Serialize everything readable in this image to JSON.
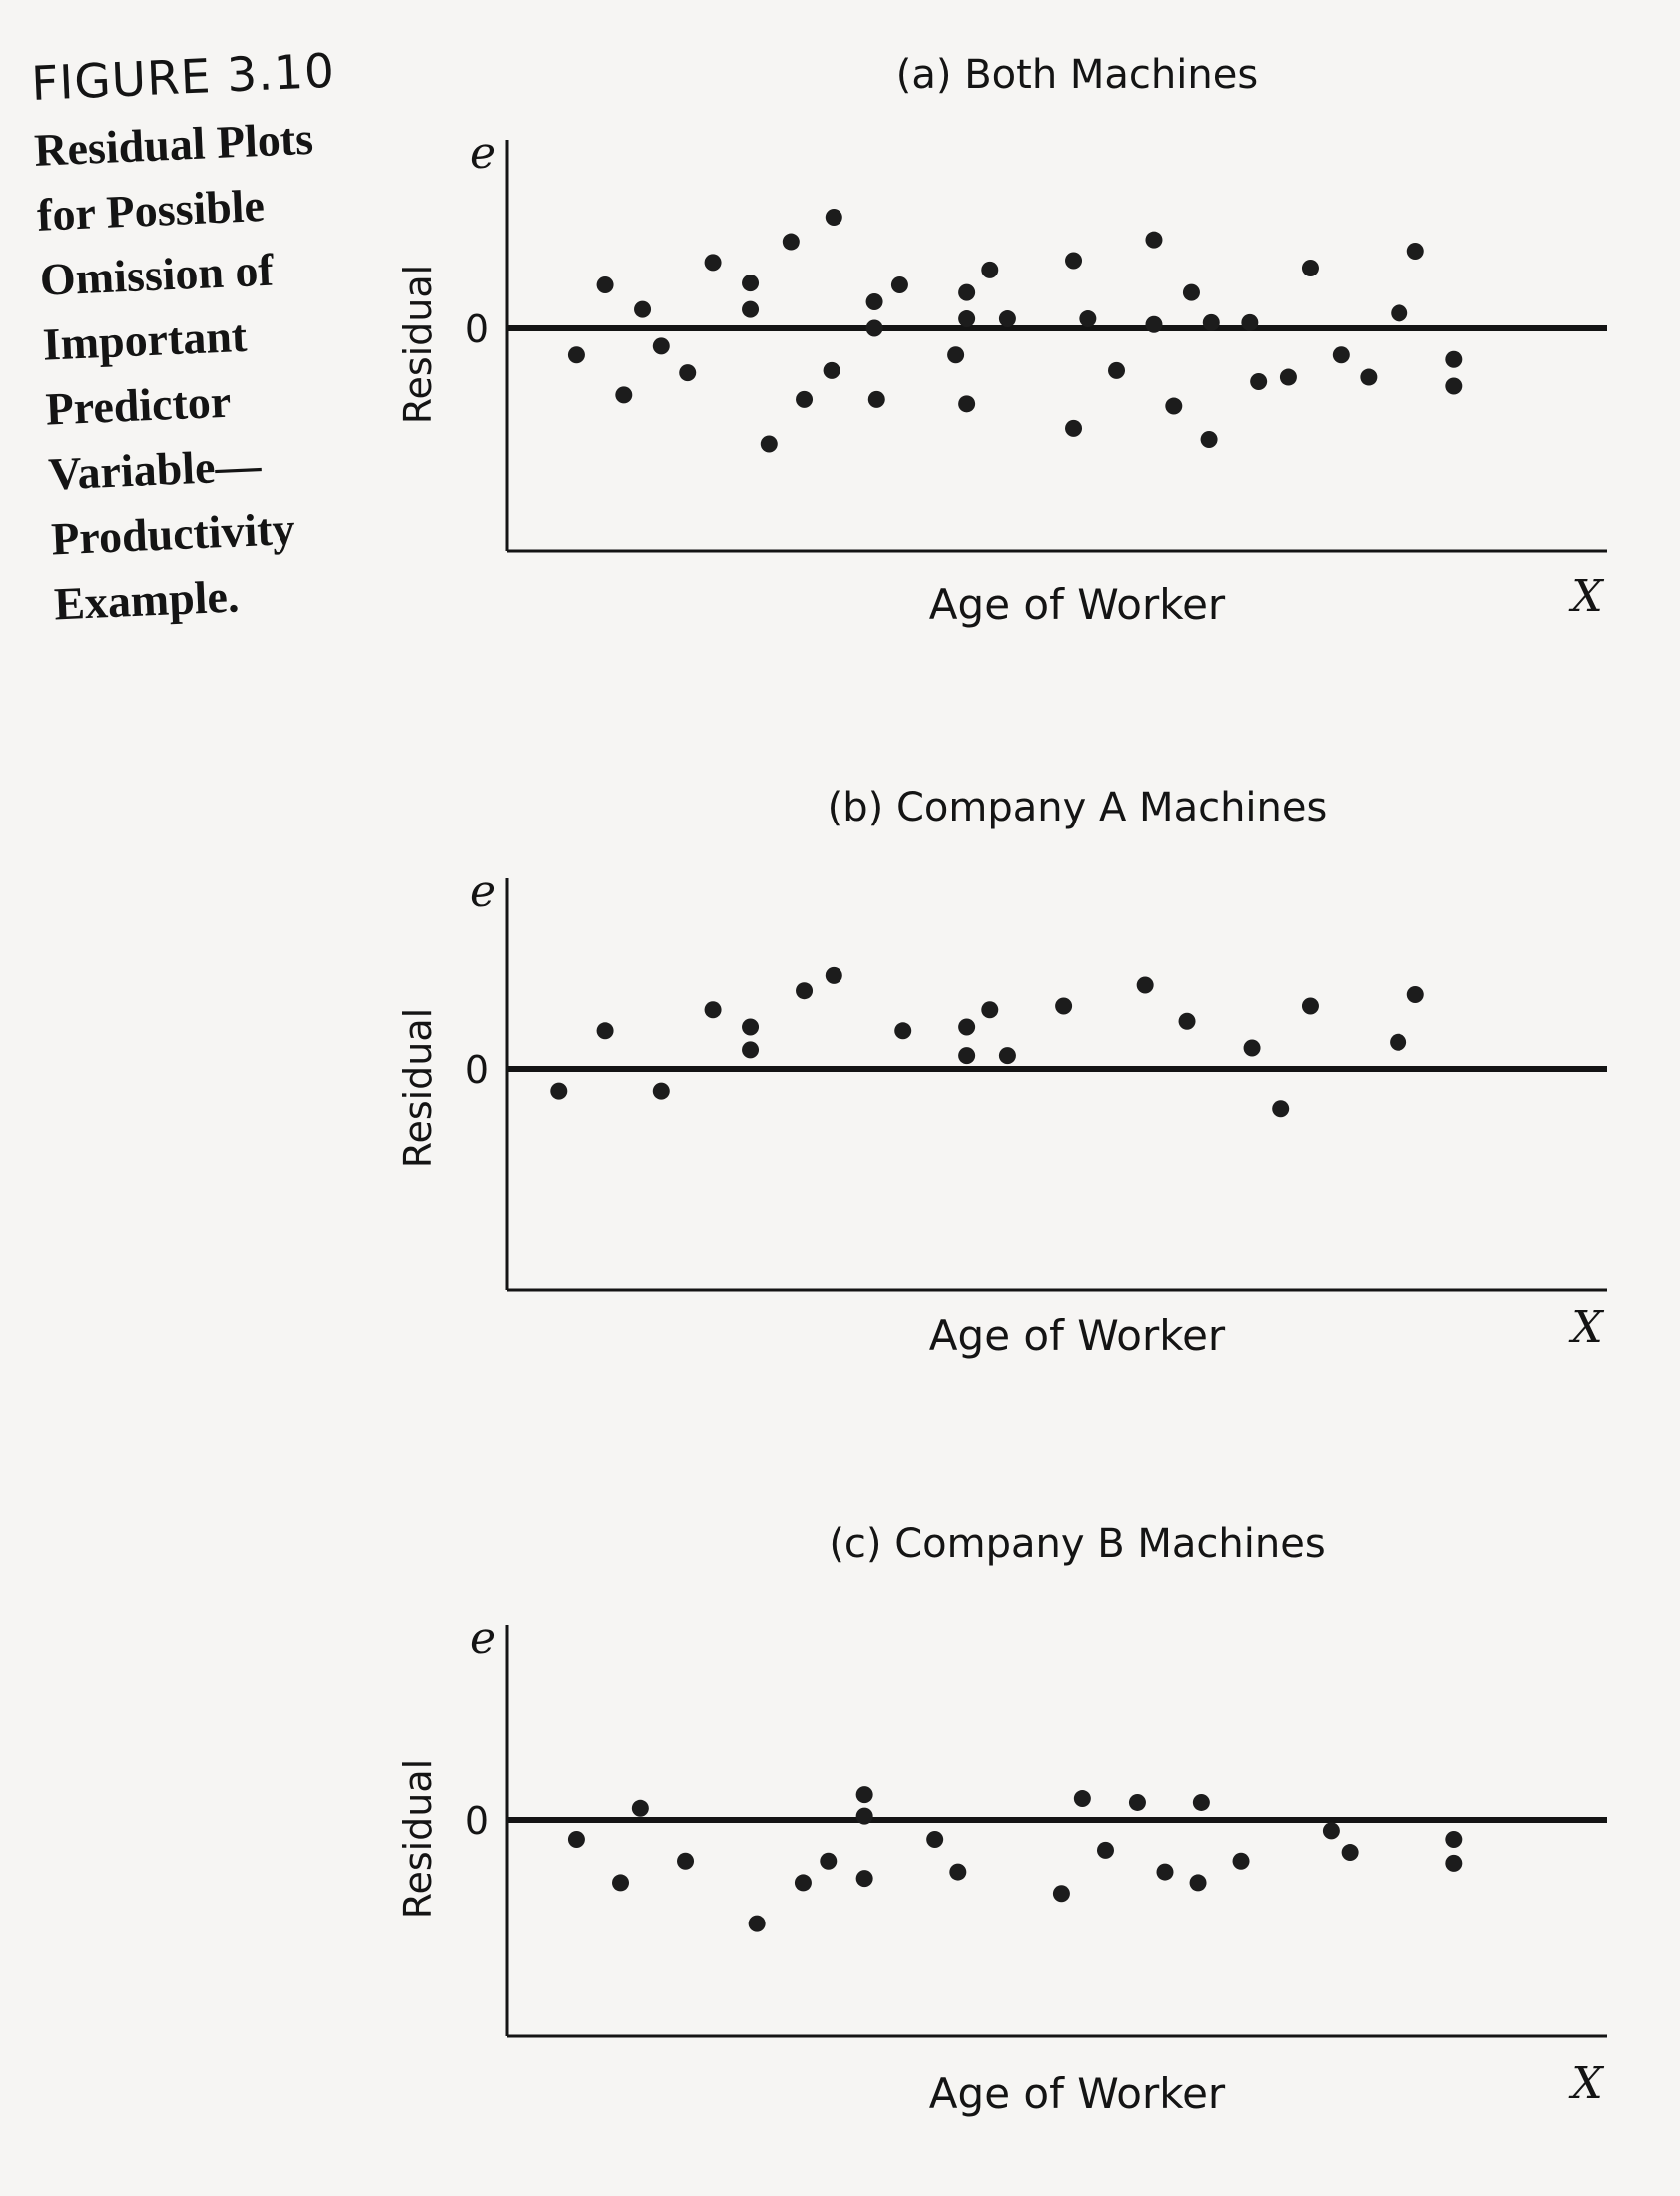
{
  "figure": {
    "label": "FIGURE 3.10",
    "caption": "Residual Plots\nfor Possible\nOmission of\nImportant\nPredictor\nVariable—\nProductivity\nExample."
  },
  "chart_data": [
    {
      "type": "scatter",
      "title": "(a) Both Machines",
      "xlabel": "Age of Worker",
      "ylabel": "Residual",
      "x_symbol": "X",
      "y_symbol": "e",
      "ytick_labels": [
        "0"
      ],
      "reference_line_y": 0,
      "xlim": [
        0,
        100
      ],
      "ylim": [
        -100,
        100
      ],
      "points": [
        {
          "x": 6.3,
          "y": -12
        },
        {
          "x": 8.9,
          "y": 23
        },
        {
          "x": 10.6,
          "y": -30
        },
        {
          "x": 12.3,
          "y": 10
        },
        {
          "x": 14.0,
          "y": -8
        },
        {
          "x": 16.4,
          "y": -20
        },
        {
          "x": 18.7,
          "y": 35
        },
        {
          "x": 22.1,
          "y": 24
        },
        {
          "x": 22.1,
          "y": 10
        },
        {
          "x": 23.8,
          "y": -52
        },
        {
          "x": 25.8,
          "y": 46
        },
        {
          "x": 27.0,
          "y": -32
        },
        {
          "x": 29.5,
          "y": -19
        },
        {
          "x": 29.7,
          "y": 59
        },
        {
          "x": 33.4,
          "y": 14
        },
        {
          "x": 33.4,
          "y": 0
        },
        {
          "x": 33.6,
          "y": -32
        },
        {
          "x": 35.7,
          "y": 23
        },
        {
          "x": 40.8,
          "y": -12
        },
        {
          "x": 41.8,
          "y": 19
        },
        {
          "x": 41.8,
          "y": 5
        },
        {
          "x": 41.8,
          "y": -34
        },
        {
          "x": 43.9,
          "y": 31
        },
        {
          "x": 45.5,
          "y": 5
        },
        {
          "x": 51.5,
          "y": 36
        },
        {
          "x": 51.5,
          "y": -45
        },
        {
          "x": 52.8,
          "y": 5
        },
        {
          "x": 55.4,
          "y": -19
        },
        {
          "x": 58.8,
          "y": 47
        },
        {
          "x": 58.8,
          "y": 2
        },
        {
          "x": 60.6,
          "y": -35
        },
        {
          "x": 62.2,
          "y": 19
        },
        {
          "x": 63.8,
          "y": -50
        },
        {
          "x": 64.0,
          "y": 3
        },
        {
          "x": 67.5,
          "y": 3
        },
        {
          "x": 68.3,
          "y": -24
        },
        {
          "x": 71.0,
          "y": -22
        },
        {
          "x": 73.0,
          "y": 32
        },
        {
          "x": 75.8,
          "y": -12
        },
        {
          "x": 78.3,
          "y": -22
        },
        {
          "x": 81.1,
          "y": 8
        },
        {
          "x": 82.6,
          "y": 41
        },
        {
          "x": 86.1,
          "y": -14
        },
        {
          "x": 86.1,
          "y": -26
        }
      ]
    },
    {
      "type": "scatter",
      "title": "(b) Company A Machines",
      "xlabel": "Age of Worker",
      "ylabel": "Residual",
      "x_symbol": "X",
      "y_symbol": "e",
      "ytick_labels": [
        "0"
      ],
      "reference_line_y": 0,
      "xlim": [
        0,
        100
      ],
      "ylim": [
        -100,
        100
      ],
      "points": [
        {
          "x": 4.7,
          "y": -10
        },
        {
          "x": 8.9,
          "y": 20
        },
        {
          "x": 14.0,
          "y": -10
        },
        {
          "x": 18.7,
          "y": 31
        },
        {
          "x": 22.1,
          "y": 22
        },
        {
          "x": 22.1,
          "y": 10
        },
        {
          "x": 27.0,
          "y": 41
        },
        {
          "x": 29.7,
          "y": 49
        },
        {
          "x": 36.0,
          "y": 20
        },
        {
          "x": 41.8,
          "y": 22
        },
        {
          "x": 41.8,
          "y": 7
        },
        {
          "x": 43.9,
          "y": 31
        },
        {
          "x": 45.5,
          "y": 7
        },
        {
          "x": 50.6,
          "y": 33
        },
        {
          "x": 58.0,
          "y": 44
        },
        {
          "x": 61.8,
          "y": 25
        },
        {
          "x": 67.7,
          "y": 11
        },
        {
          "x": 70.3,
          "y": -18
        },
        {
          "x": 73.0,
          "y": 33
        },
        {
          "x": 81.0,
          "y": 14
        },
        {
          "x": 82.6,
          "y": 39
        }
      ]
    },
    {
      "type": "scatter",
      "title": "(c) Company B Machines",
      "xlabel": "Age of Worker",
      "ylabel": "Residual",
      "x_symbol": "X",
      "y_symbol": "e",
      "ytick_labels": [
        "0"
      ],
      "reference_line_y": 0,
      "xlim": [
        0,
        100
      ],
      "ylim": [
        -100,
        100
      ],
      "points": [
        {
          "x": 6.3,
          "y": -9
        },
        {
          "x": 10.3,
          "y": -29
        },
        {
          "x": 12.1,
          "y": 6
        },
        {
          "x": 16.2,
          "y": -19
        },
        {
          "x": 22.7,
          "y": -48
        },
        {
          "x": 26.9,
          "y": -29
        },
        {
          "x": 29.2,
          "y": -19
        },
        {
          "x": 32.5,
          "y": 13
        },
        {
          "x": 32.5,
          "y": 2
        },
        {
          "x": 32.5,
          "y": -27
        },
        {
          "x": 38.9,
          "y": -9
        },
        {
          "x": 41.0,
          "y": -24
        },
        {
          "x": 50.4,
          "y": -34
        },
        {
          "x": 52.3,
          "y": 11
        },
        {
          "x": 54.4,
          "y": -14
        },
        {
          "x": 57.3,
          "y": 9
        },
        {
          "x": 59.8,
          "y": -24
        },
        {
          "x": 62.8,
          "y": -29
        },
        {
          "x": 63.1,
          "y": 9
        },
        {
          "x": 66.7,
          "y": -19
        },
        {
          "x": 74.9,
          "y": -5
        },
        {
          "x": 76.6,
          "y": -15
        },
        {
          "x": 86.1,
          "y": -9
        },
        {
          "x": 86.1,
          "y": -20
        }
      ]
    }
  ]
}
